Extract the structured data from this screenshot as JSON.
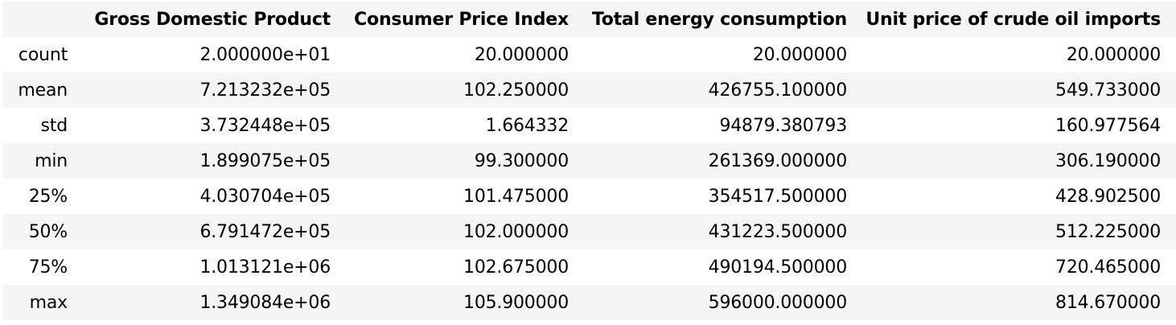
{
  "table": {
    "index_header": "",
    "columns": [
      "Gross Domestic Product",
      "Consumer Price Index",
      "Total energy consumption",
      "Unit price of crude oil imports"
    ],
    "rows": [
      {
        "label": "count",
        "values": [
          "2.000000e+01",
          "20.000000",
          "20.000000",
          "20.000000"
        ]
      },
      {
        "label": "mean",
        "values": [
          "7.213232e+05",
          "102.250000",
          "426755.100000",
          "549.733000"
        ]
      },
      {
        "label": "std",
        "values": [
          "3.732448e+05",
          "1.664332",
          "94879.380793",
          "160.977564"
        ]
      },
      {
        "label": "min",
        "values": [
          "1.899075e+05",
          "99.300000",
          "261369.000000",
          "306.190000"
        ]
      },
      {
        "label": "25%",
        "values": [
          "4.030704e+05",
          "101.475000",
          "354517.500000",
          "428.902500"
        ]
      },
      {
        "label": "50%",
        "values": [
          "6.791472e+05",
          "102.000000",
          "431223.500000",
          "512.225000"
        ]
      },
      {
        "label": "75%",
        "values": [
          "1.013121e+06",
          "102.675000",
          "490194.500000",
          "720.465000"
        ]
      },
      {
        "label": "max",
        "values": [
          "1.349084e+06",
          "105.900000",
          "596000.000000",
          "814.670000"
        ]
      }
    ]
  }
}
